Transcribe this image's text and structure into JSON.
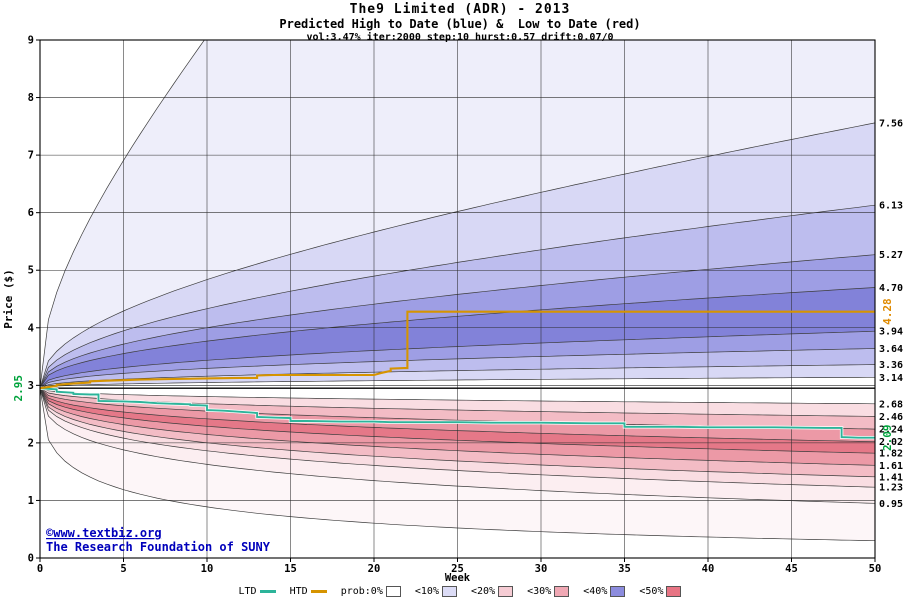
{
  "header": {
    "title": "The9 Limited (ADR) - 2013",
    "subtitle": "Predicted High to Date (blue) &  Low to Date (red)",
    "params": "vol:3.47% iter:2000 step:10 hurst:0.57 drift:0.07/0"
  },
  "watermark": {
    "line1": "©www.textbiz.org",
    "line2": "The Research Foundation of SUNY",
    "color": "#0000bb"
  },
  "axes": {
    "xlabel": "Week",
    "ylabel": "Price ($)",
    "xlim": [
      0,
      50
    ],
    "ylim": [
      0,
      9
    ],
    "xticks": [
      0,
      5,
      10,
      15,
      20,
      25,
      30,
      35,
      40,
      45,
      50
    ],
    "yticks": [
      0,
      1,
      2,
      3,
      4,
      5,
      6,
      7,
      8,
      9
    ],
    "grid": true
  },
  "start": {
    "price": 2.95,
    "label": "2.95",
    "color": "#00a33c"
  },
  "chart_data": {
    "type": "area",
    "title": "The9 Limited (ADR) - 2013 — Predicted High to Date (blue) & Low to Date (red)",
    "start_price": 2.95,
    "curve_power": 0.4,
    "high_boundaries": [
      {
        "value": 25.0,
        "label": ""
      },
      {
        "value": 7.56,
        "label": "7.56"
      },
      {
        "value": 6.13,
        "label": "6.13"
      },
      {
        "value": 5.27,
        "label": "5.27"
      },
      {
        "value": 4.7,
        "label": "4.70"
      },
      {
        "value": 3.94,
        "label": "3.94"
      },
      {
        "value": 3.64,
        "label": "3.64"
      },
      {
        "value": 3.36,
        "label": "3.36"
      },
      {
        "value": 3.14,
        "label": "3.14"
      }
    ],
    "high_band_colors": [
      "#eeeefa",
      "#d8d8f5",
      "#bdbdee",
      "#9e9ee4",
      "#8282d9",
      "#9e9ee4",
      "#bdbdee",
      "#d8d8f5"
    ],
    "low_boundaries": [
      {
        "value": 2.68,
        "label": "2.68"
      },
      {
        "value": 2.46,
        "label": "2.46"
      },
      {
        "value": 2.24,
        "label": "2.24"
      },
      {
        "value": 2.02,
        "label": "2.02"
      },
      {
        "value": 1.82,
        "label": "1.82"
      },
      {
        "value": 1.61,
        "label": "1.61"
      },
      {
        "value": 1.41,
        "label": "1.41"
      },
      {
        "value": 1.23,
        "label": "1.23"
      },
      {
        "value": 0.95,
        "label": "0.95"
      },
      {
        "value": 0.3,
        "label": ""
      }
    ],
    "low_band_colors": [
      "#f9dde2",
      "#f3bcc5",
      "#ec99a6",
      "#e57888",
      "#ec99a6",
      "#f3bcc5",
      "#f9dde2",
      "#fceef1",
      "#fdf6f8"
    ],
    "htd": {
      "name": "HTD",
      "color": "#d69400",
      "label_color": "#df8a00",
      "final_label": "4.28",
      "points": [
        [
          0,
          2.95
        ],
        [
          0.5,
          2.97
        ],
        [
          1,
          2.99
        ],
        [
          1,
          3.01
        ],
        [
          2,
          3.03
        ],
        [
          3,
          3.05
        ],
        [
          3,
          3.07
        ],
        [
          4,
          3.08
        ],
        [
          5,
          3.09
        ],
        [
          6,
          3.1
        ],
        [
          8,
          3.11
        ],
        [
          10,
          3.12
        ],
        [
          12,
          3.13
        ],
        [
          13,
          3.13
        ],
        [
          13,
          3.17
        ],
        [
          14,
          3.18
        ],
        [
          20,
          3.18
        ],
        [
          20.5,
          3.22
        ],
        [
          21,
          3.25
        ],
        [
          21,
          3.29
        ],
        [
          21.8,
          3.3
        ],
        [
          22,
          3.3
        ],
        [
          22,
          4.28
        ],
        [
          50,
          4.28
        ]
      ]
    },
    "ltd": {
      "name": "LTD",
      "color": "#2cb49a",
      "label_color": "#00a33c",
      "final_label": "2.09",
      "points": [
        [
          0,
          2.95
        ],
        [
          1,
          2.93
        ],
        [
          1,
          2.89
        ],
        [
          2,
          2.87
        ],
        [
          2,
          2.85
        ],
        [
          3,
          2.84
        ],
        [
          3.5,
          2.84
        ],
        [
          3.5,
          2.73
        ],
        [
          5,
          2.72
        ],
        [
          6,
          2.71
        ],
        [
          7,
          2.69
        ],
        [
          8,
          2.68
        ],
        [
          9,
          2.67
        ],
        [
          9,
          2.66
        ],
        [
          10,
          2.65
        ],
        [
          10,
          2.57
        ],
        [
          11,
          2.56
        ],
        [
          12,
          2.54
        ],
        [
          13,
          2.52
        ],
        [
          13,
          2.45
        ],
        [
          14,
          2.44
        ],
        [
          15,
          2.43
        ],
        [
          15,
          2.38
        ],
        [
          16,
          2.38
        ],
        [
          18,
          2.37
        ],
        [
          20,
          2.37
        ],
        [
          21,
          2.36
        ],
        [
          25,
          2.36
        ],
        [
          27,
          2.35
        ],
        [
          30,
          2.35
        ],
        [
          33,
          2.34
        ],
        [
          35,
          2.34
        ],
        [
          35,
          2.28
        ],
        [
          38,
          2.28
        ],
        [
          40,
          2.27
        ],
        [
          44,
          2.27
        ],
        [
          47,
          2.26
        ],
        [
          48,
          2.26
        ],
        [
          48,
          2.1
        ],
        [
          49,
          2.09
        ],
        [
          50,
          2.09
        ]
      ]
    }
  },
  "legend": {
    "items": [
      {
        "label": "LTD",
        "type": "line",
        "color": "#2cb49a"
      },
      {
        "label": "HTD",
        "type": "line",
        "color": "#d69400"
      },
      {
        "label": "prob:0%",
        "type": "box",
        "color": "#ffffff"
      },
      {
        "label": "<10%",
        "type": "box",
        "color": "#dcdcf6"
      },
      {
        "label": "<20%",
        "type": "box",
        "color": "#f6ccd4"
      },
      {
        "label": "<30%",
        "type": "box",
        "color": "#f0a8b4"
      },
      {
        "label": "<40%",
        "type": "box",
        "color": "#8c8cde"
      },
      {
        "label": "<50%",
        "type": "box",
        "color": "#e87484"
      }
    ]
  }
}
